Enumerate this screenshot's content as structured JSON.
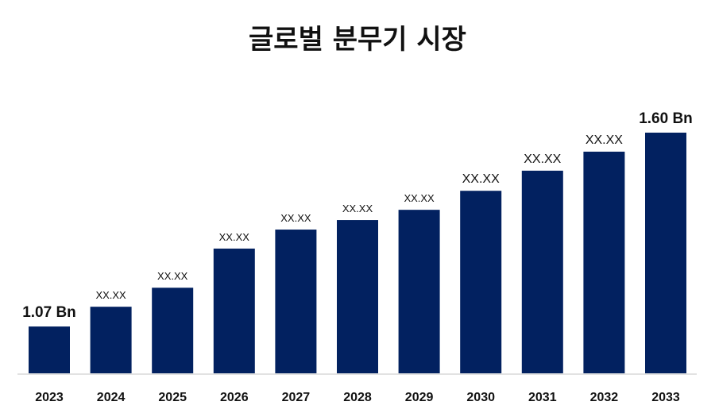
{
  "chart_data": {
    "type": "bar",
    "title": "글로벌 분무기 시장",
    "xlabel": "",
    "ylabel": "",
    "categories": [
      "2023",
      "2024",
      "2025",
      "2026",
      "2027",
      "2028",
      "2029",
      "2030",
      "2031",
      "2032",
      "2033"
    ],
    "values": [
      1.07,
      1.124,
      1.176,
      1.283,
      1.335,
      1.361,
      1.389,
      1.441,
      1.496,
      1.548,
      1.6
    ],
    "data_labels": [
      "1.07 Bn",
      "XX.XX",
      "XX.XX",
      "XX.XX",
      "XX.XX",
      "XX.XX",
      "XX.XX",
      "XX.XX",
      "XX.XX",
      "XX.XX",
      "1.60 Bn"
    ],
    "ylim": [
      0.942,
      1.6
    ],
    "unit": "Bn",
    "grid": false,
    "legend": "none",
    "bar_color": "#022160",
    "axis_color": "#d9d9d9"
  }
}
